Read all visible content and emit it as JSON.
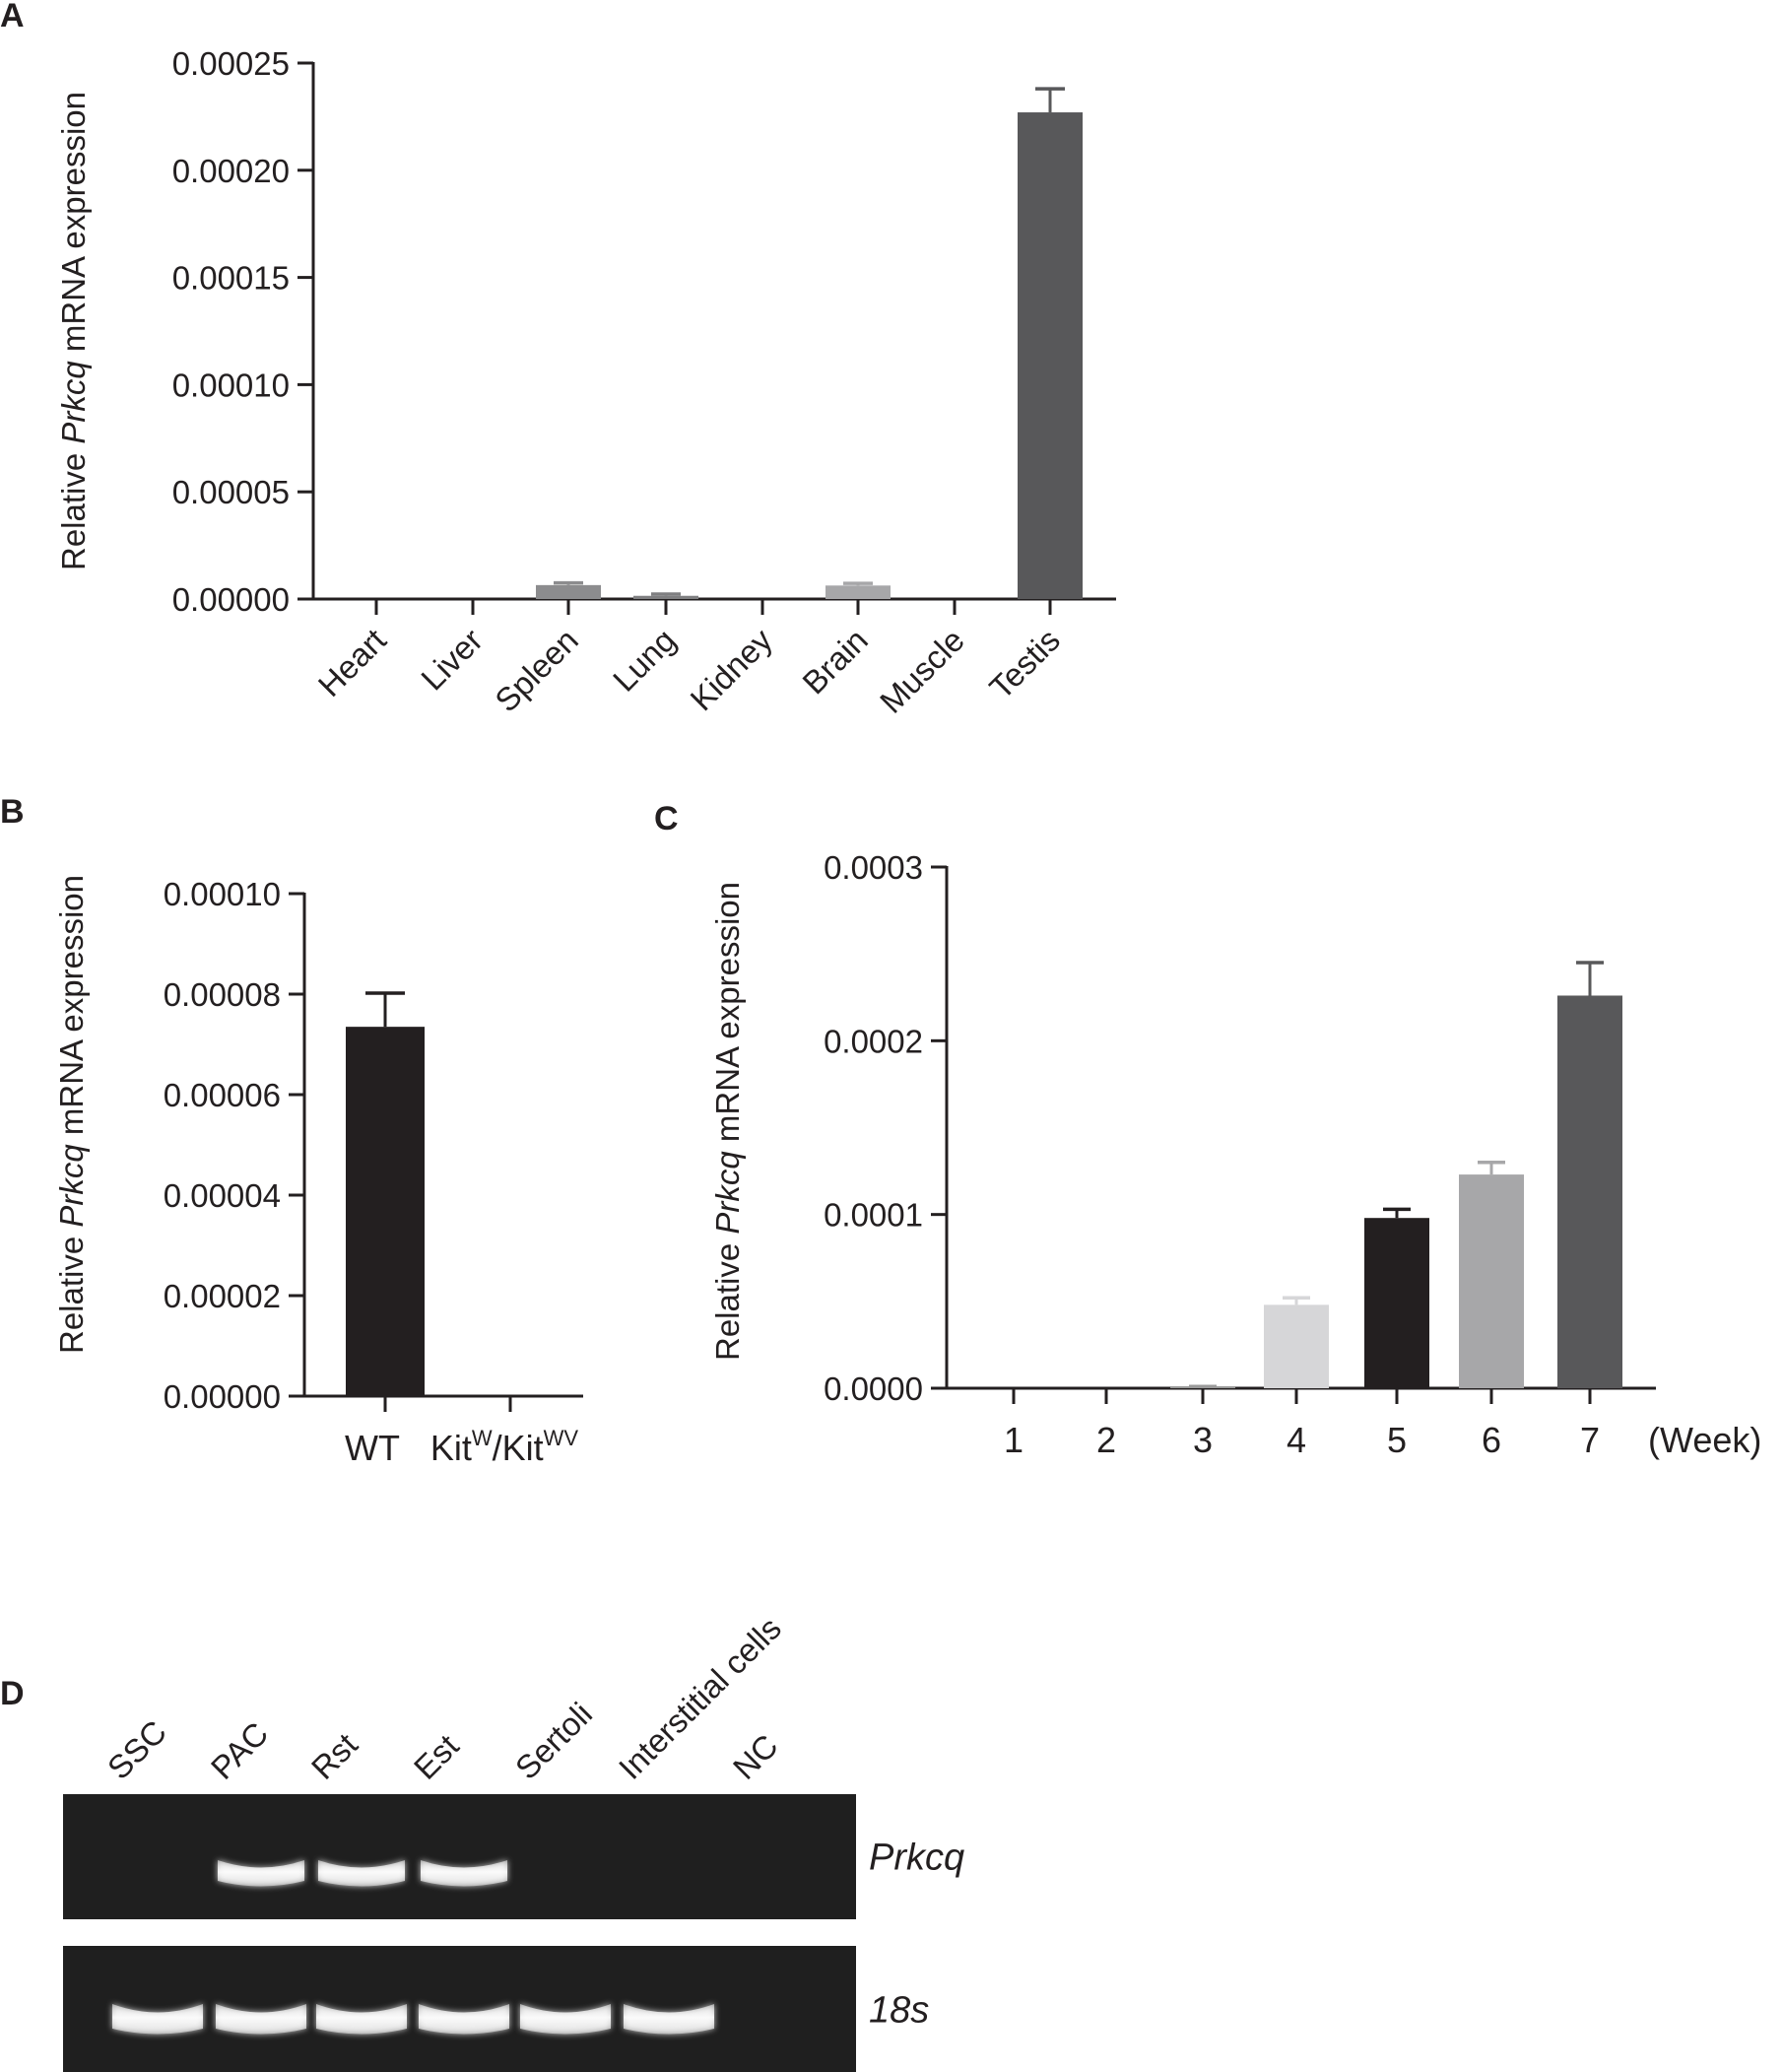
{
  "chart_data": [
    {
      "panel": "A",
      "type": "bar",
      "ylabel": {
        "pre": "Relative ",
        "gene": "Prkcq",
        "post": " mRNA expression"
      },
      "ylim": [
        0,
        0.00025
      ],
      "yticks": [
        "0.00000",
        "0.00005",
        "0.00010",
        "0.00015",
        "0.00020",
        "0.00025"
      ],
      "categories": [
        "Heart",
        "Liver",
        "Spleen",
        "Lung",
        "Kidney",
        "Brain",
        "Muscle",
        "Testis"
      ],
      "values": [
        0,
        0,
        6.5e-06,
        1.5e-06,
        0,
        6.3e-06,
        0,
        0.000227
      ],
      "errors": [
        0,
        0,
        1e-06,
        8e-07,
        0,
        1e-06,
        0,
        1.1e-05
      ],
      "colors": [
        "#9a9a9a",
        "#9a9a9a",
        "#8c8c8e",
        "#7f7f81",
        "#9a9a9a",
        "#a7a7a9",
        "#9a9a9a",
        "#58585a"
      ]
    },
    {
      "panel": "B",
      "type": "bar",
      "ylabel": {
        "pre": "Relative ",
        "gene": "Prkcq",
        "post": " mRNA expression"
      },
      "ylim": [
        0,
        0.0001
      ],
      "yticks": [
        "0.00000",
        "0.00002",
        "0.00004",
        "0.00006",
        "0.00008",
        "0.00010"
      ],
      "categories": [
        {
          "label": "WT"
        },
        {
          "base1": "Kit",
          "sup1": "W",
          "sep": "/",
          "base2": "Kit",
          "sup2": "WV"
        }
      ],
      "values": [
        7.35e-05,
        0
      ],
      "errors": [
        6.7e-06,
        0
      ],
      "colors": [
        "#231f20",
        "#231f20"
      ]
    },
    {
      "panel": "C",
      "type": "bar",
      "ylabel": {
        "pre": "Relative ",
        "gene": "Prkcq",
        "post": " mRNA expression"
      },
      "ylim": [
        0,
        0.0003
      ],
      "yticks": [
        "0.0000",
        "0.0001",
        "0.0002",
        "0.0003"
      ],
      "categories": [
        "1",
        "2",
        "3",
        "4",
        "5",
        "6",
        "7"
      ],
      "unit_label": "(Week)",
      "values": [
        0,
        0,
        5e-07,
        4.8e-05,
        9.8e-05,
        0.000123,
        0.000226
      ],
      "errors": [
        0,
        0,
        5e-07,
        4e-06,
        5e-06,
        7e-06,
        1.9e-05
      ],
      "colors": [
        "#9a9a9a",
        "#9a9a9a",
        "#9a9a9a",
        "#d6d6d8",
        "#231f20",
        "#a7a7a9",
        "#58585a"
      ]
    }
  ],
  "gel": {
    "panel": "D",
    "lanes": [
      "SSC",
      "PAC",
      "Rst",
      "Est",
      "Sertoli",
      "Interstitial cells",
      "NC"
    ],
    "rows": [
      {
        "gene": "Prkcq",
        "bands": [
          0,
          1,
          1,
          1,
          0,
          0,
          0
        ]
      },
      {
        "gene": "18s",
        "bands": [
          1,
          1,
          1,
          1,
          1,
          1,
          0
        ]
      }
    ]
  }
}
